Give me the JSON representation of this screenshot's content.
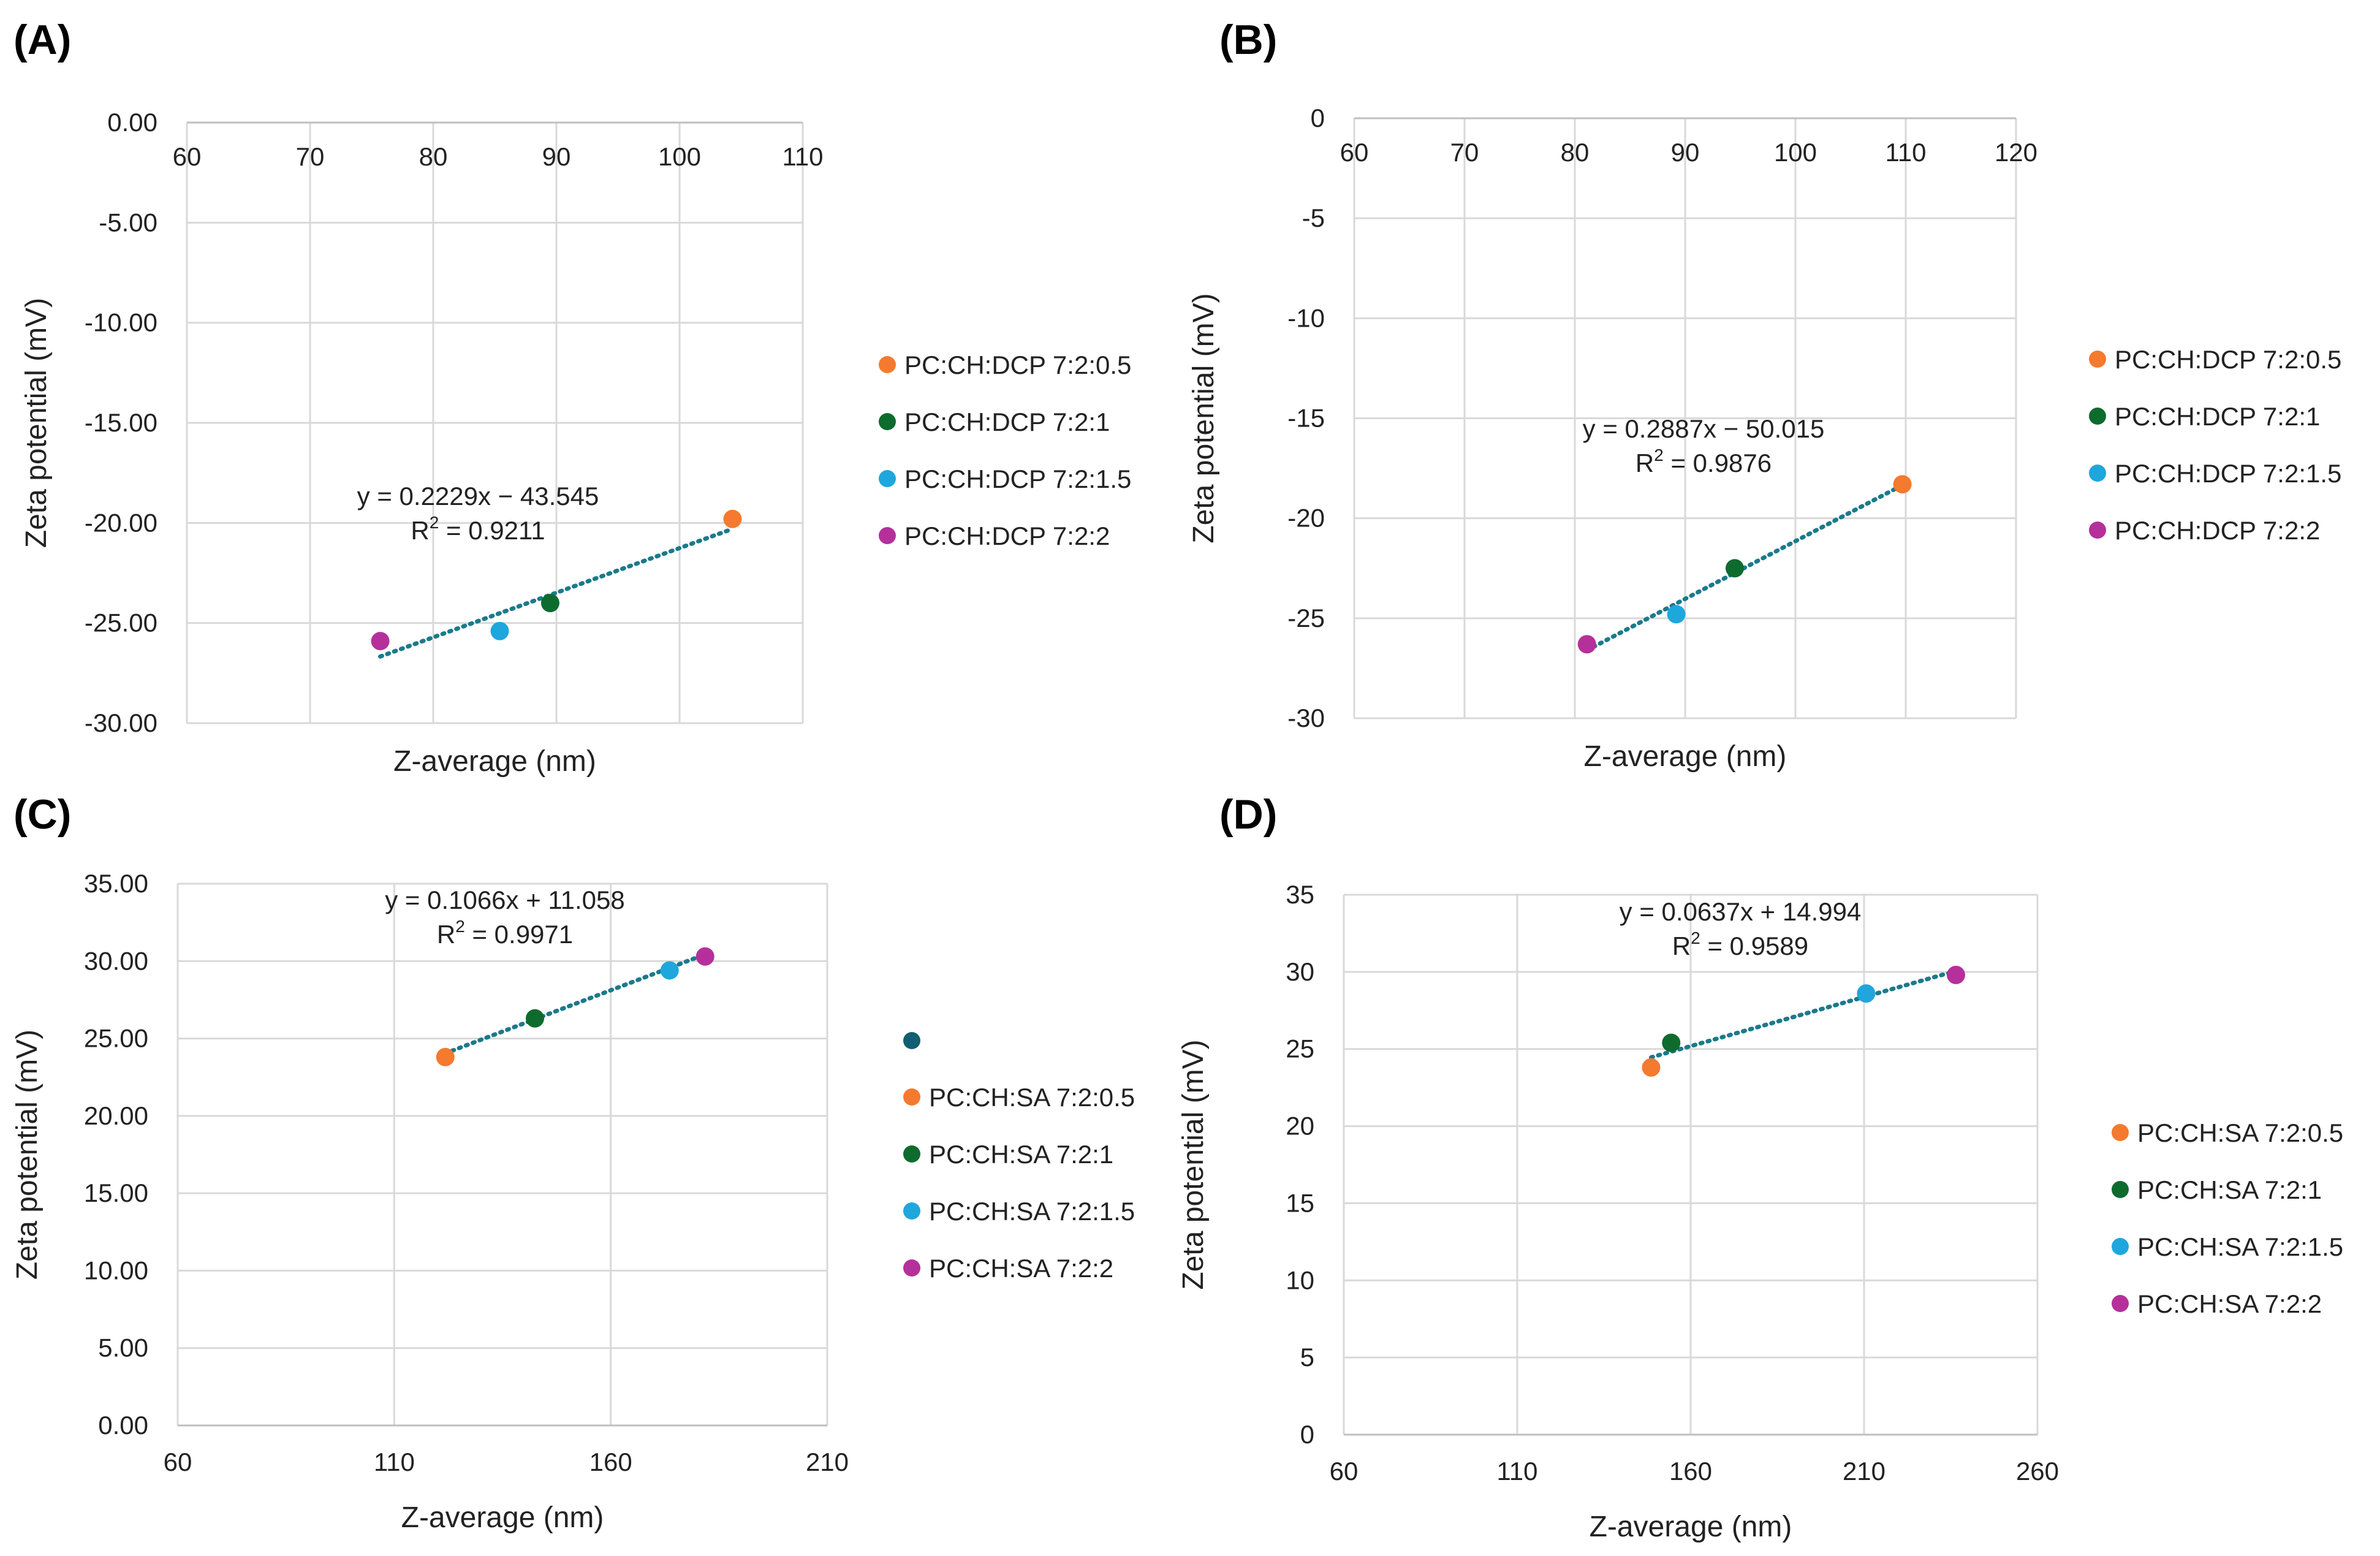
{
  "chart_data": [
    {
      "panel": "(A)",
      "type": "scatter",
      "xlabel": "Z-average (nm)",
      "ylabel": "Zeta potential (mV)",
      "xlim": [
        60,
        110
      ],
      "ylim": [
        -30,
        0
      ],
      "xticks": [
        60,
        70,
        80,
        90,
        100,
        110
      ],
      "xtick_labels": [
        "60",
        "70",
        "80",
        "90",
        "100",
        "110"
      ],
      "yticks": [
        0,
        -5,
        -10,
        -15,
        -20,
        -25,
        -30
      ],
      "ytick_labels": [
        "0.00",
        "-5.00",
        "-10.00",
        "-15.00",
        "-20.00",
        "-25.00",
        "-30.00"
      ],
      "x_axis_position": "top",
      "legend_position": "right",
      "series": [
        {
          "name": "PC:CH:DCP 7:2:0.5",
          "color": "#F47A2F",
          "x": 104.3,
          "y": -19.8
        },
        {
          "name": "PC:CH:DCP 7:2:1",
          "color": "#0E6B2E",
          "x": 89.5,
          "y": -24.0
        },
        {
          "name": "PC:CH:DCP 7:2:1.5",
          "color": "#1EA7DD",
          "x": 85.4,
          "y": -25.4
        },
        {
          "name": "PC:CH:DCP 7:2:2",
          "color": "#B5309B",
          "x": 75.7,
          "y": -25.9
        }
      ],
      "trendline": {
        "slope": 0.2229,
        "intercept": -43.545,
        "x_range": [
          75.7,
          104.3
        ],
        "color": "#1A7A8C"
      },
      "equation": "y = 0.2229x − 43.545",
      "r2_prefix": "R",
      "r2_value": " = 0.9211"
    },
    {
      "panel": "(B)",
      "type": "scatter",
      "xlabel": "Z-average (nm)",
      "ylabel": "Zeta potential (mV)",
      "xlim": [
        60,
        120
      ],
      "ylim": [
        -30,
        0
      ],
      "xticks": [
        60,
        70,
        80,
        90,
        100,
        110,
        120
      ],
      "xtick_labels": [
        "60",
        "70",
        "80",
        "90",
        "100",
        "110",
        "120"
      ],
      "yticks": [
        0,
        -5,
        -10,
        -15,
        -20,
        -25,
        -30
      ],
      "ytick_labels": [
        "0",
        "-5",
        "-10",
        "-15",
        "-20",
        "-25",
        "-30"
      ],
      "x_axis_position": "top",
      "legend_position": "right",
      "series": [
        {
          "name": "PC:CH:DCP 7:2:0.5",
          "color": "#F47A2F",
          "x": 109.7,
          "y": -18.3
        },
        {
          "name": "PC:CH:DCP 7:2:1",
          "color": "#0E6B2E",
          "x": 94.5,
          "y": -22.5
        },
        {
          "name": "PC:CH:DCP 7:2:1.5",
          "color": "#1EA7DD",
          "x": 89.2,
          "y": -24.8
        },
        {
          "name": "PC:CH:DCP 7:2:2",
          "color": "#B5309B",
          "x": 81.1,
          "y": -26.3
        }
      ],
      "trendline": {
        "slope": 0.2887,
        "intercept": -50.015,
        "x_range": [
          81.1,
          109.7
        ],
        "color": "#1A7A8C"
      },
      "equation": "y = 0.2887x − 50.015",
      "r2_prefix": "R",
      "r2_value": " = 0.9876"
    },
    {
      "panel": "(C)",
      "type": "scatter",
      "xlabel": "Z-average (nm)",
      "ylabel": "Zeta potential (mV)",
      "xlim": [
        60,
        210
      ],
      "ylim": [
        0,
        35
      ],
      "xticks": [
        60,
        110,
        160,
        210
      ],
      "xtick_labels": [
        "60",
        "110",
        "160",
        "210"
      ],
      "yticks": [
        0,
        5,
        10,
        15,
        20,
        25,
        30,
        35
      ],
      "ytick_labels": [
        "0.00",
        "5.00",
        "10.00",
        "15.00",
        "20.00",
        "25.00",
        "30.00",
        "35.00"
      ],
      "x_axis_position": "bottom",
      "legend_position": "right",
      "legend_extra_marker": "#125E73",
      "series": [
        {
          "name": "PC:CH:SA 7:2:0.5",
          "color": "#F47A2F",
          "x": 121.8,
          "y": 23.8
        },
        {
          "name": "PC:CH:SA 7:2:1",
          "color": "#0E6B2E",
          "x": 142.5,
          "y": 26.3
        },
        {
          "name": "PC:CH:SA 7:2:1.5",
          "color": "#1EA7DD",
          "x": 173.6,
          "y": 29.4
        },
        {
          "name": "PC:CH:SA 7:2:2",
          "color": "#B5309B",
          "x": 181.8,
          "y": 30.3
        }
      ],
      "trendline": {
        "slope": 0.1066,
        "intercept": 11.058,
        "x_range": [
          121.8,
          181.8
        ],
        "color": "#1A7A8C"
      },
      "equation": "y = 0.1066x + 11.058",
      "r2_prefix": "R",
      "r2_value": " = 0.9971"
    },
    {
      "panel": "(D)",
      "type": "scatter",
      "xlabel": "Z-average (nm)",
      "ylabel": "Zeta potential (mV)",
      "xlim": [
        60,
        260
      ],
      "ylim": [
        0,
        35
      ],
      "xticks": [
        60,
        110,
        160,
        210,
        260
      ],
      "xtick_labels": [
        "60",
        "110",
        "160",
        "210",
        "260"
      ],
      "yticks": [
        0,
        5,
        10,
        15,
        20,
        25,
        30,
        35
      ],
      "ytick_labels": [
        "0",
        "5",
        "10",
        "15",
        "20",
        "25",
        "30",
        "35"
      ],
      "x_axis_position": "bottom",
      "legend_position": "right",
      "series": [
        {
          "name": "PC:CH:SA 7:2:0.5",
          "color": "#F47A2F",
          "x": 148.6,
          "y": 23.8
        },
        {
          "name": "PC:CH:SA 7:2:1",
          "color": "#0E6B2E",
          "x": 154.4,
          "y": 25.4
        },
        {
          "name": "PC:CH:SA 7:2:1.5",
          "color": "#1EA7DD",
          "x": 210.6,
          "y": 28.6
        },
        {
          "name": "PC:CH:SA 7:2:2",
          "color": "#B5309B",
          "x": 236.5,
          "y": 29.8
        }
      ],
      "trendline": {
        "slope": 0.0637,
        "intercept": 14.994,
        "x_range": [
          148.6,
          236.5
        ],
        "color": "#1A7A8C"
      },
      "equation": "y = 0.0637x + 14.994",
      "r2_prefix": "R",
      "r2_value": " = 0.9589"
    }
  ]
}
